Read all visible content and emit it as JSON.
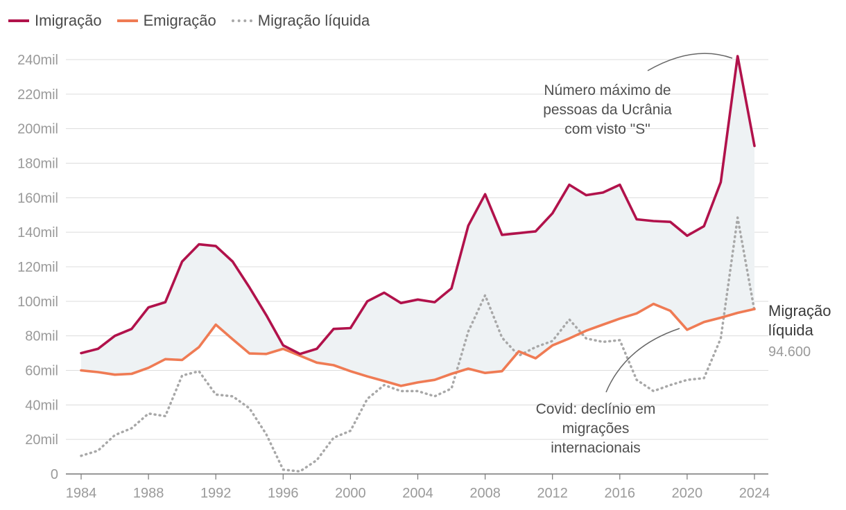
{
  "colors": {
    "immigration": "#b1124b",
    "emigration": "#ef7b54",
    "net": "#a8a8a8",
    "band": "#eef2f4",
    "grid": "#dcdcdc",
    "axis": "#777777",
    "annotation_line": "#666666"
  },
  "legend": {
    "immigration": "Imigração",
    "emigration": "Emigração",
    "net": "Migração líquida"
  },
  "chart_data": {
    "type": "line",
    "title": "",
    "xlabel": "",
    "ylabel": "",
    "ylim": [
      0,
      240000
    ],
    "xlim": [
      1984,
      2024
    ],
    "y_ticks": [
      0,
      20000,
      40000,
      60000,
      80000,
      100000,
      120000,
      140000,
      160000,
      180000,
      200000,
      220000,
      240000
    ],
    "y_tick_labels": [
      "0",
      "20mil",
      "40mil",
      "60mil",
      "80mil",
      "100mil",
      "120mil",
      "140mil",
      "160mil",
      "180mil",
      "200mil",
      "220mil",
      "240mil"
    ],
    "x_ticks": [
      1984,
      1988,
      1992,
      1996,
      2000,
      2004,
      2008,
      2012,
      2016,
      2020,
      2024
    ],
    "x_tick_labels": [
      "1984",
      "1988",
      "1992",
      "1996",
      "2000",
      "2004",
      "2008",
      "2012",
      "2016",
      "2020",
      "2024"
    ],
    "x": [
      1984,
      1985,
      1986,
      1987,
      1988,
      1989,
      1990,
      1991,
      1992,
      1993,
      1994,
      1995,
      1996,
      1997,
      1998,
      1999,
      2000,
      2001,
      2002,
      2003,
      2004,
      2005,
      2006,
      2007,
      2008,
      2009,
      2010,
      2011,
      2012,
      2013,
      2014,
      2015,
      2016,
      2017,
      2018,
      2019,
      2020,
      2021,
      2022,
      2023,
      2024
    ],
    "series": [
      {
        "name": "Imigração",
        "style": "solid",
        "values": [
          70000,
          72500,
          80000,
          84000,
          96500,
          99500,
          123000,
          133000,
          132000,
          123000,
          108000,
          92000,
          74500,
          69500,
          72500,
          84000,
          84500,
          100000,
          105000,
          99000,
          101000,
          99500,
          107500,
          143800,
          162000,
          138500,
          139500,
          140500,
          151000,
          167500,
          161500,
          163000,
          167500,
          147500,
          146500,
          146000,
          138000,
          143500,
          169000,
          242000,
          190000
        ]
      },
      {
        "name": "Emigração",
        "style": "solid",
        "values": [
          60000,
          59000,
          57500,
          58000,
          61500,
          66500,
          66000,
          73500,
          86500,
          78000,
          69800,
          69500,
          72500,
          68500,
          64500,
          63000,
          59500,
          56500,
          53800,
          51000,
          53000,
          54500,
          58000,
          61000,
          58500,
          59500,
          71000,
          67000,
          74500,
          78500,
          83000,
          86500,
          90000,
          93000,
          98500,
          94500,
          83500,
          88000,
          90500,
          93300,
          95500
        ]
      },
      {
        "name": "Migração líquida",
        "style": "dotted",
        "values": [
          10500,
          13500,
          22500,
          26500,
          35000,
          33500,
          57000,
          59500,
          46000,
          45000,
          38000,
          23000,
          2500,
          1500,
          8000,
          21000,
          25000,
          43500,
          51500,
          48000,
          48000,
          45000,
          49500,
          82500,
          103500,
          79000,
          68500,
          73500,
          77000,
          89500,
          78500,
          76500,
          77500,
          54500,
          48000,
          51500,
          54500,
          55500,
          78500,
          148500,
          94600
        ]
      }
    ],
    "annotations": {
      "peak_lines": [
        "Número máximo de",
        "pessoas da Ucrânia",
        "com visto \"S\""
      ],
      "covid_lines": [
        "Covid: declínio em",
        "migrações",
        "internacionais"
      ],
      "end_label_lines": [
        "Migração",
        "líquida"
      ],
      "end_value": "94.600"
    }
  }
}
